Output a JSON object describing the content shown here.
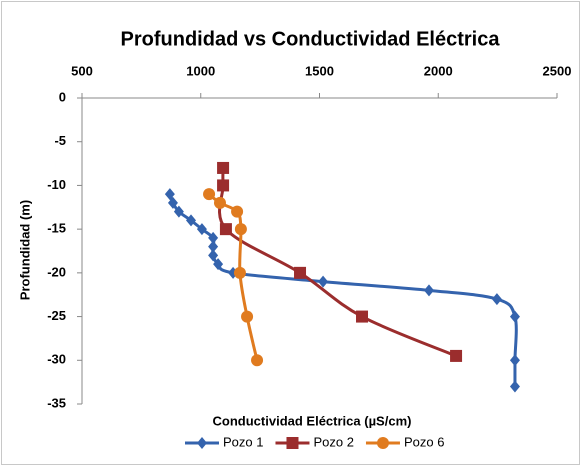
{
  "chart_data": {
    "type": "line",
    "title": "Profundidad vs Conductividad Eléctrica",
    "x_label": "Conductividad Eléctrica (µS/cm)",
    "y_label": "Profundidad (m)",
    "xlim": [
      500,
      2500
    ],
    "xticks": [
      500,
      1000,
      1500,
      2000,
      2500
    ],
    "ylim": [
      -35,
      0
    ],
    "yticks": [
      0,
      -5,
      -10,
      -15,
      -20,
      -25,
      -30,
      -35
    ],
    "legend": "bottom",
    "series": [
      {
        "name": "Pozo 1",
        "color": "#3463ad",
        "marker": "diamond",
        "x": [
          870,
          883,
          908,
          959,
          1005,
          1052,
          1052,
          1052,
          1073,
          1136,
          1515,
          1961,
          2247,
          2323,
          2323,
          2323
        ],
        "values": [
          -11,
          -12,
          -13,
          -14,
          -15,
          -16,
          -17,
          -18,
          -19,
          -20,
          -21,
          -22,
          -23,
          -25,
          -30,
          -33
        ]
      },
      {
        "name": "Pozo 2",
        "color": "#9b2d2d",
        "marker": "square",
        "x": [
          1094,
          1094,
          1106,
          1418,
          1679,
          2075
        ],
        "values": [
          -8,
          -10,
          -15,
          -20,
          -25,
          -29.5
        ]
      },
      {
        "name": "Pozo 6",
        "color": "#e07b1f",
        "marker": "circle",
        "x": [
          1035,
          1081,
          1153,
          1169,
          1165,
          1195,
          1237
        ],
        "values": [
          -11,
          -12,
          -13,
          -15,
          -20,
          -25,
          -30
        ]
      }
    ]
  }
}
